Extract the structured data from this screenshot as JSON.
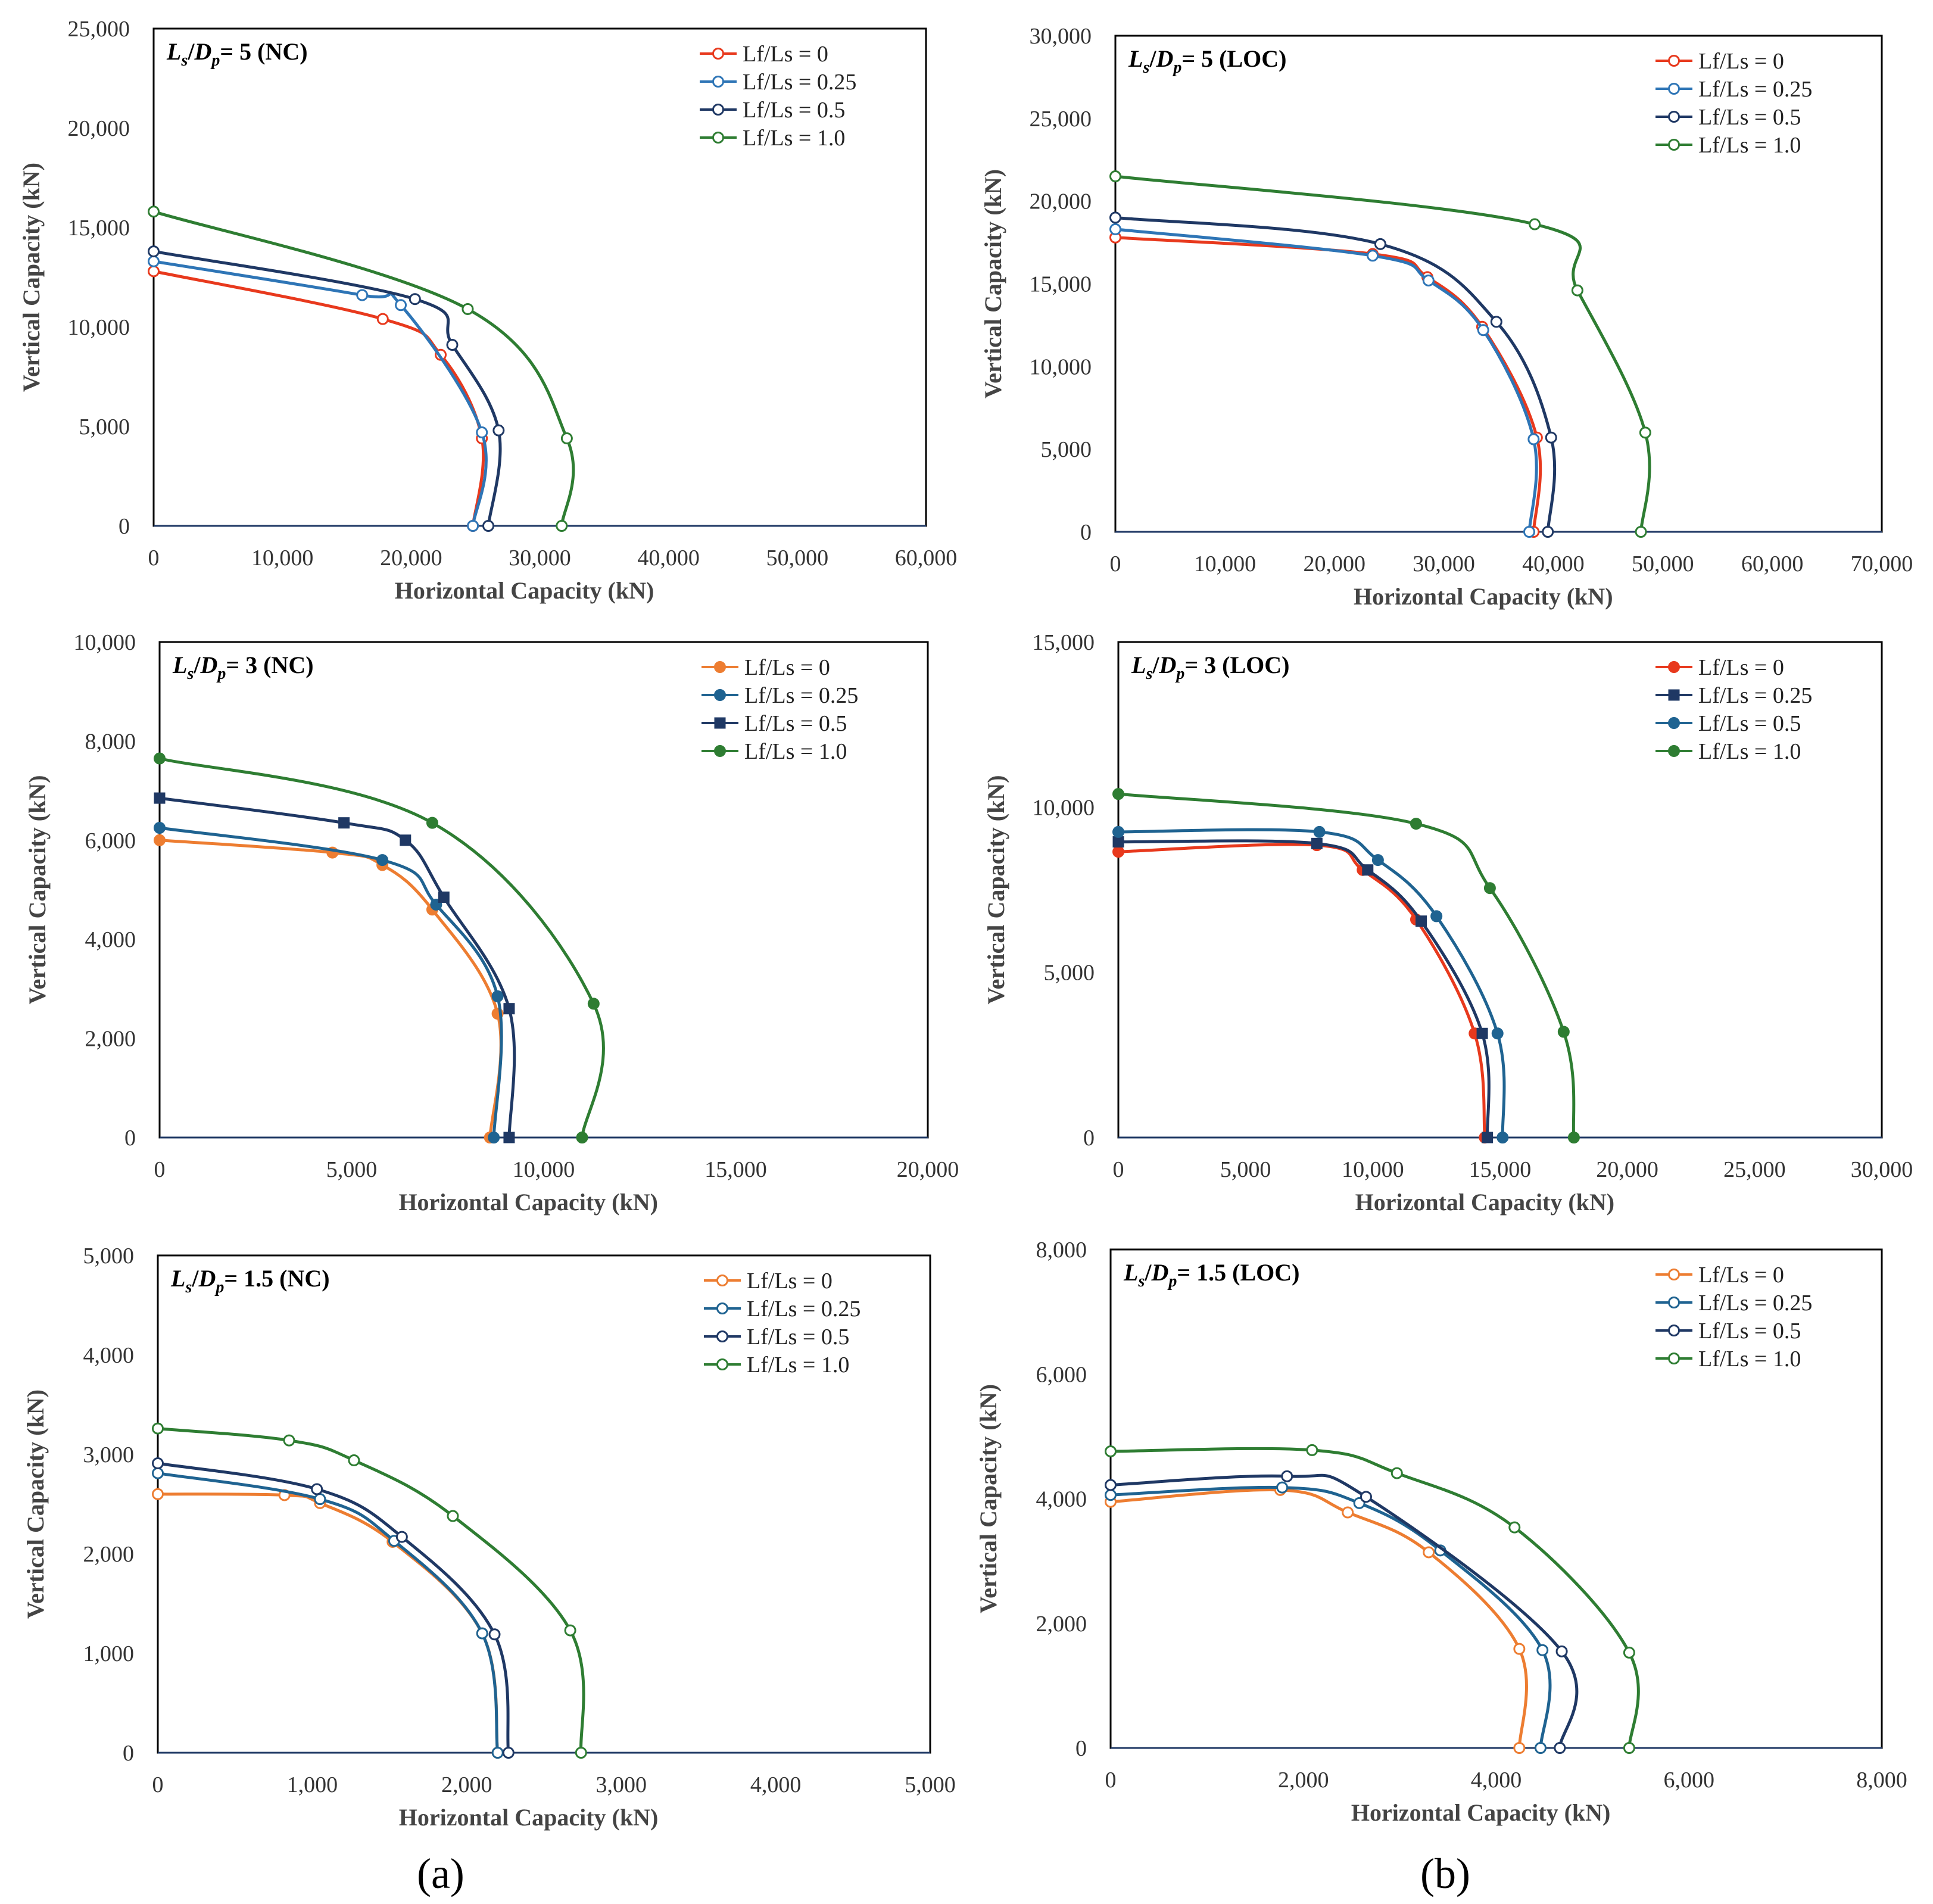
{
  "panel_labels": [
    "(a)",
    "(b)"
  ],
  "colors": {
    "c0": "#e8391d",
    "c0b": "#ed7d31",
    "c025": "#2e75b6",
    "c025b": "#1f6391",
    "c05": "#1f3864",
    "c10": "#2e7d32"
  },
  "chart_data": [
    {
      "type": "line",
      "title": "Ls/Dp = 5 (NC)",
      "title_var": "L_s/D_p",
      "title_rest": "= 5 (NC)",
      "xlabel": "Horizontal Capacity (kN)",
      "ylabel": "Vertical Capacity (kN)",
      "xlim": [
        0,
        60000
      ],
      "ylim": [
        0,
        25000
      ],
      "xticks": [
        "0",
        "10,000",
        "20,000",
        "30,000",
        "40,000",
        "50,000",
        "60,000"
      ],
      "yticks": [
        "0",
        "5,000",
        "10,000",
        "15,000",
        "20,000",
        "25,000"
      ],
      "legend": "top-right",
      "marker_style": "open",
      "series": [
        {
          "name": "Lf/Ls = 0",
          "color": "#e8391d",
          "marker": "circle-open",
          "points": [
            [
              0,
              12800
            ],
            [
              17800,
              10400
            ],
            [
              22300,
              8600
            ],
            [
              25500,
              4400
            ],
            [
              24800,
              0
            ]
          ]
        },
        {
          "name": "Lf/Ls = 0.25",
          "color": "#2e75b6",
          "marker": "circle-open",
          "points": [
            [
              0,
              13300
            ],
            [
              16200,
              11600
            ],
            [
              19200,
              11100
            ],
            [
              25500,
              4700
            ],
            [
              24800,
              0
            ]
          ]
        },
        {
          "name": "Lf/Ls = 0.5",
          "color": "#1f3864",
          "marker": "circle-open",
          "points": [
            [
              0,
              13800
            ],
            [
              20300,
              11400
            ],
            [
              23200,
              9100
            ],
            [
              26800,
              4800
            ],
            [
              26000,
              0
            ]
          ]
        },
        {
          "name": "Lf/Ls = 1.0",
          "color": "#2e7d32",
          "marker": "circle-open",
          "points": [
            [
              0,
              15800
            ],
            [
              24400,
              10900
            ],
            [
              32100,
              4400
            ],
            [
              31700,
              0
            ]
          ]
        }
      ]
    },
    {
      "type": "line",
      "title": "Ls/Dp = 5 (LOC)",
      "title_var": "L_s/D_p",
      "title_rest": "= 5 (LOC)",
      "xlabel": "Horizontal Capacity (kN)",
      "ylabel": "Vertical Capacity (kN)",
      "xlim": [
        0,
        70000
      ],
      "ylim": [
        0,
        30000
      ],
      "xticks": [
        "0",
        "10,000",
        "20,000",
        "30,000",
        "40,000",
        "50,000",
        "60,000",
        "70,000"
      ],
      "yticks": [
        "0",
        "5,000",
        "10,000",
        "15,000",
        "20,000",
        "25,000",
        "30,000"
      ],
      "legend": "top-right",
      "marker_style": "open",
      "series": [
        {
          "name": "Lf/Ls = 0",
          "color": "#e8391d",
          "marker": "circle-open",
          "points": [
            [
              0,
              17800
            ],
            [
              23500,
              16800
            ],
            [
              28500,
              15400
            ],
            [
              33500,
              12400
            ],
            [
              38500,
              5700
            ],
            [
              38200,
              0
            ]
          ]
        },
        {
          "name": "Lf/Ls = 0.25",
          "color": "#2e75b6",
          "marker": "circle-open",
          "points": [
            [
              0,
              18300
            ],
            [
              23500,
              16700
            ],
            [
              28600,
              15200
            ],
            [
              33600,
              12200
            ],
            [
              38200,
              5600
            ],
            [
              37800,
              0
            ]
          ]
        },
        {
          "name": "Lf/Ls = 0.5",
          "color": "#1f3864",
          "marker": "circle-open",
          "points": [
            [
              0,
              19000
            ],
            [
              24200,
              17400
            ],
            [
              34800,
              12700
            ],
            [
              39800,
              5700
            ],
            [
              39500,
              0
            ]
          ]
        },
        {
          "name": "Lf/Ls = 1.0",
          "color": "#2e7d32",
          "marker": "circle-open",
          "points": [
            [
              0,
              21500
            ],
            [
              38300,
              18600
            ],
            [
              42200,
              14600
            ],
            [
              48400,
              6000
            ],
            [
              48000,
              0
            ]
          ]
        }
      ]
    },
    {
      "type": "line",
      "title": "Ls/Dp = 3 (NC)",
      "title_var": "L_s/D_p",
      "title_rest": "= 3 (NC)",
      "xlabel": "Horizontal Capacity (kN)",
      "ylabel": "Vertical Capacity (kN)",
      "xlim": [
        0,
        20000
      ],
      "ylim": [
        0,
        10000
      ],
      "xticks": [
        "0",
        "5,000",
        "10,000",
        "15,000",
        "20,000"
      ],
      "yticks": [
        "0",
        "2,000",
        "4,000",
        "6,000",
        "8,000",
        "10,000"
      ],
      "legend": "top-right",
      "marker_style": "filled",
      "series": [
        {
          "name": "Lf/Ls = 0",
          "color": "#ed7d31",
          "marker": "circle",
          "points": [
            [
              0,
              6000
            ],
            [
              4500,
              5750
            ],
            [
              5800,
              5500
            ],
            [
              7100,
              4600
            ],
            [
              8800,
              2500
            ],
            [
              8600,
              0
            ]
          ]
        },
        {
          "name": "Lf/Ls = 0.25",
          "color": "#1f6391",
          "marker": "circle",
          "points": [
            [
              0,
              6250
            ],
            [
              5800,
              5600
            ],
            [
              7200,
              4700
            ],
            [
              8800,
              2850
            ],
            [
              8700,
              0
            ]
          ]
        },
        {
          "name": "Lf/Ls = 0.5",
          "color": "#1f3864",
          "marker": "square",
          "points": [
            [
              0,
              6850
            ],
            [
              4800,
              6350
            ],
            [
              6400,
              6000
            ],
            [
              7400,
              4850
            ],
            [
              9100,
              2600
            ],
            [
              9100,
              0
            ]
          ]
        },
        {
          "name": "Lf/Ls = 1.0",
          "color": "#2e7d32",
          "marker": "circle",
          "points": [
            [
              0,
              7650
            ],
            [
              7100,
              6350
            ],
            [
              11300,
              2700
            ],
            [
              11000,
              0
            ]
          ]
        }
      ]
    },
    {
      "type": "line",
      "title": "Ls/Dp = 3 (LOC)",
      "title_var": "L_s/D_p",
      "title_rest": "= 3 (LOC)",
      "xlabel": "Horizontal Capacity (kN)",
      "ylabel": "Vertical Capacity (kN)",
      "xlim": [
        0,
        30000
      ],
      "ylim": [
        0,
        15000
      ],
      "xticks": [
        "0",
        "5,000",
        "10,000",
        "15,000",
        "20,000",
        "25,000",
        "30,000"
      ],
      "yticks": [
        "0",
        "5,000",
        "10,000",
        "15,000"
      ],
      "legend": "top-right",
      "marker_style": "filled",
      "series": [
        {
          "name": "Lf/Ls = 0",
          "color": "#e8391d",
          "marker": "circle",
          "points": [
            [
              0,
              8650
            ],
            [
              7800,
              8850
            ],
            [
              9600,
              8100
            ],
            [
              11700,
              6600
            ],
            [
              14000,
              3150
            ],
            [
              14400,
              0
            ]
          ]
        },
        {
          "name": "Lf/Ls = 0.25",
          "color": "#1f3864",
          "marker": "square",
          "points": [
            [
              0,
              8950
            ],
            [
              7800,
              8900
            ],
            [
              9800,
              8100
            ],
            [
              11900,
              6550
            ],
            [
              14300,
              3150
            ],
            [
              14500,
              0
            ]
          ]
        },
        {
          "name": "Lf/Ls = 0.5",
          "color": "#1f6391",
          "marker": "circle",
          "points": [
            [
              0,
              9250
            ],
            [
              7900,
              9250
            ],
            [
              10200,
              8400
            ],
            [
              12500,
              6700
            ],
            [
              14900,
              3150
            ],
            [
              15100,
              0
            ]
          ]
        },
        {
          "name": "Lf/Ls = 1.0",
          "color": "#2e7d32",
          "marker": "circle",
          "points": [
            [
              0,
              10400
            ],
            [
              11700,
              9500
            ],
            [
              14600,
              7550
            ],
            [
              17500,
              3200
            ],
            [
              17900,
              0
            ]
          ]
        }
      ]
    },
    {
      "type": "line",
      "title": "Ls/Dp = 1.5 (NC)",
      "title_var": "L_s/D_p",
      "title_rest": "= 1.5 (NC)",
      "xlabel": "Horizontal Capacity (kN)",
      "ylabel": "Vertical Capacity (kN)",
      "xlim": [
        0,
        5000
      ],
      "ylim": [
        0,
        5000
      ],
      "xticks": [
        "0",
        "1,000",
        "2,000",
        "3,000",
        "4,000",
        "5,000"
      ],
      "yticks": [
        "0",
        "1,000",
        "2,000",
        "3,000",
        "4,000",
        "5,000"
      ],
      "legend": "top-right",
      "marker_style": "open",
      "series": [
        {
          "name": "Lf/Ls = 0",
          "color": "#ed7d31",
          "marker": "circle-open",
          "points": [
            [
              0,
              2600
            ],
            [
              820,
              2590
            ],
            [
              1050,
              2510
            ],
            [
              1520,
              2120
            ],
            [
              2100,
              1200
            ],
            [
              2200,
              0
            ]
          ]
        },
        {
          "name": "Lf/Ls = 0.25",
          "color": "#1f6391",
          "marker": "circle-open",
          "points": [
            [
              0,
              2810
            ],
            [
              1050,
              2550
            ],
            [
              1530,
              2130
            ],
            [
              2100,
              1200
            ],
            [
              2200,
              0
            ]
          ]
        },
        {
          "name": "Lf/Ls = 0.5",
          "color": "#1f3864",
          "marker": "circle-open",
          "points": [
            [
              0,
              2910
            ],
            [
              1030,
              2650
            ],
            [
              1580,
              2170
            ],
            [
              2180,
              1190
            ],
            [
              2270,
              0
            ]
          ]
        },
        {
          "name": "Lf/Ls = 1.0",
          "color": "#2e7d32",
          "marker": "circle-open",
          "points": [
            [
              0,
              3260
            ],
            [
              850,
              3140
            ],
            [
              1270,
              2940
            ],
            [
              1910,
              2380
            ],
            [
              2670,
              1230
            ],
            [
              2740,
              0
            ]
          ]
        }
      ]
    },
    {
      "type": "line",
      "title": "Ls/Dp = 1.5 (LOC)",
      "title_var": "L_s/D_p",
      "title_rest": "= 1.5 (LOC)",
      "xlabel": "Horizontal Capacity (kN)",
      "ylabel": "Vertical Capacity (kN)",
      "xlim": [
        0,
        8000
      ],
      "ylim": [
        0,
        8000
      ],
      "xticks": [
        "0",
        "2,000",
        "4,000",
        "6,000",
        "8,000"
      ],
      "yticks": [
        "0",
        "2,000",
        "4,000",
        "6,000",
        "8,000"
      ],
      "legend": "top-right",
      "marker_style": "open",
      "series": [
        {
          "name": "Lf/Ls = 0",
          "color": "#ed7d31",
          "marker": "circle-open",
          "points": [
            [
              0,
              3950
            ],
            [
              1760,
              4140
            ],
            [
              2460,
              3780
            ],
            [
              3300,
              3140
            ],
            [
              4240,
              1590
            ],
            [
              4240,
              0
            ]
          ]
        },
        {
          "name": "Lf/Ls = 0.25",
          "color": "#1f6391",
          "marker": "circle-open",
          "points": [
            [
              0,
              4060
            ],
            [
              1780,
              4180
            ],
            [
              2580,
              3930
            ],
            [
              3420,
              3170
            ],
            [
              4480,
              1570
            ],
            [
              4460,
              0
            ]
          ]
        },
        {
          "name": "Lf/Ls = 0.5",
          "color": "#1f3864",
          "marker": "circle-open",
          "points": [
            [
              0,
              4220
            ],
            [
              1830,
              4360
            ],
            [
              2650,
              4030
            ],
            [
              4680,
              1550
            ],
            [
              4660,
              0
            ]
          ]
        },
        {
          "name": "Lf/Ls = 1.0",
          "color": "#2e7d32",
          "marker": "circle-open",
          "points": [
            [
              0,
              4760
            ],
            [
              2090,
              4780
            ],
            [
              2970,
              4410
            ],
            [
              4190,
              3540
            ],
            [
              5380,
              1530
            ],
            [
              5380,
              0
            ]
          ]
        }
      ]
    }
  ]
}
